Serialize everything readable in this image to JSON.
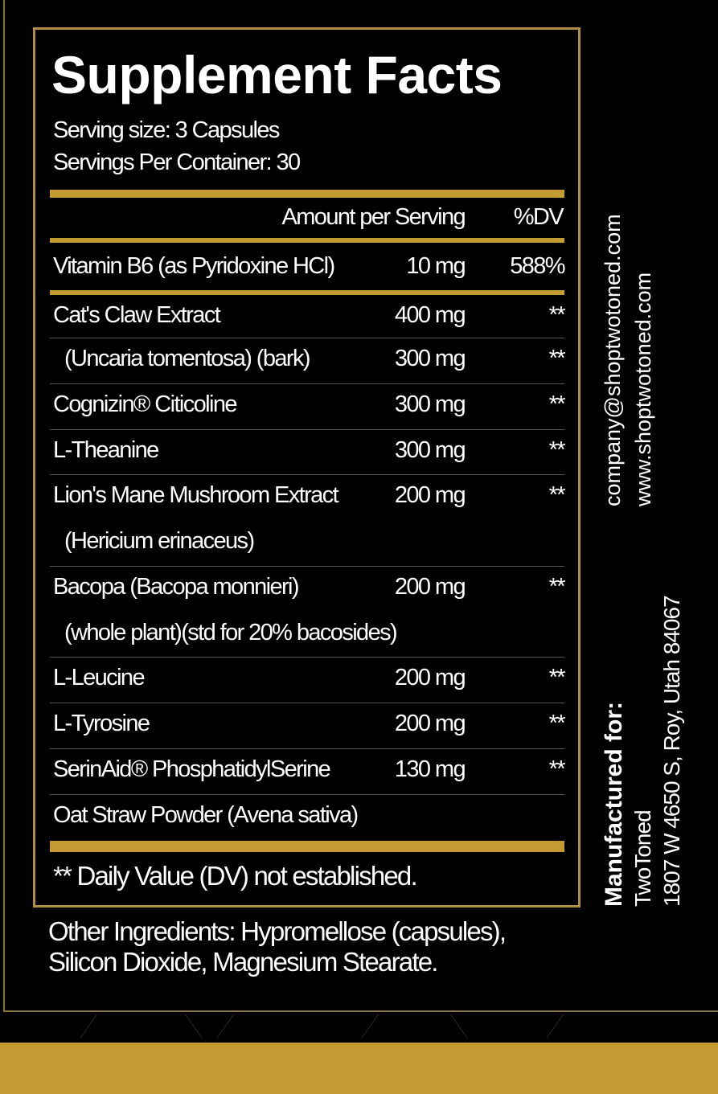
{
  "label": {
    "title": "Supplement Facts",
    "serving_size": "Serving size: 3 Capsules",
    "servings_per_container": "Servings Per Container: 30",
    "header_amount": "Amount per Serving",
    "header_dv": "%DV",
    "rows": [
      {
        "name": "Vitamin B6 (as Pyridoxine HCl)",
        "amount": "10 mg",
        "dv": "588%"
      },
      {
        "name": "Cat's Claw Extract",
        "amount": "400 mg",
        "dv": "**"
      },
      {
        "name": "(Uncaria tomentosa) (bark)",
        "amount": "300 mg",
        "dv": "**"
      },
      {
        "name": "Cognizin® Citicoline",
        "amount": "300 mg",
        "dv": "**"
      },
      {
        "name": "L-Theanine",
        "amount": "300 mg",
        "dv": "**"
      },
      {
        "name": "Lion's Mane Mushroom Extract",
        "sub": "(Hericium erinaceus)",
        "amount": "200 mg",
        "dv": "**"
      },
      {
        "name": "Bacopa (Bacopa monnieri)",
        "sub": "(whole plant)(std for 20% bacosides)",
        "amount": "200 mg",
        "dv": "**"
      },
      {
        "name": "L-Leucine",
        "amount": "200 mg",
        "dv": "**"
      },
      {
        "name": "L-Tyrosine",
        "amount": "200 mg",
        "dv": "**"
      },
      {
        "name": "SerinAid® PhosphatidylSerine",
        "amount": "130 mg",
        "dv": "**"
      },
      {
        "name": "Oat Straw Powder (Avena sativa)",
        "amount": "",
        "dv": ""
      }
    ],
    "footnote": "** Daily Value (DV) not established."
  },
  "other_ingredients": [
    "Other Ingredients: Hypromellose (capsules),",
    "Silicon Dioxide, Magnesium Stearate."
  ],
  "side": {
    "email": "company@shoptwotoned.com",
    "website": "www.shoptwotoned.com",
    "manufactured_for": "Manufactured for:",
    "company": "TwoToned",
    "address": "1807 W 4650 S, Roy, Utah 84067"
  },
  "colors": {
    "gold": "#c49a32",
    "border": "#b08f45",
    "background": "#000000",
    "text": "#ffffff"
  }
}
